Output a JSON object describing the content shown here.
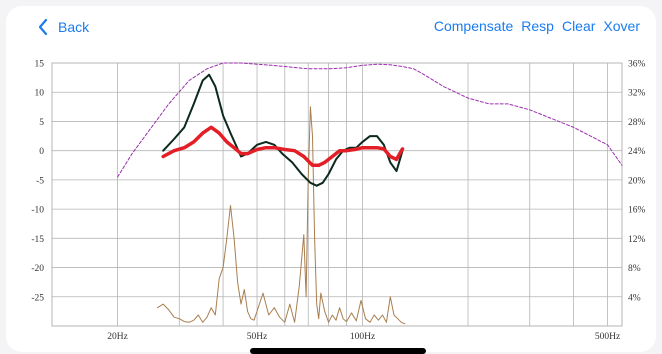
{
  "nav": {
    "back_label": "Back",
    "actions": [
      "Compensate",
      "Resp",
      "Clear",
      "Xover"
    ]
  },
  "colors": {
    "accent": "#1a7cf0",
    "grid": "#b5b5b5",
    "target": "#9b2fae",
    "response": "#0c2a1c",
    "compensated": "#e41e26",
    "spectrum": "#a97e4f"
  },
  "chart_data": {
    "type": "line",
    "x_scale": "log",
    "xlim": [
      13,
      550
    ],
    "ylim": [
      -30,
      15
    ],
    "y2lim": [
      0,
      36
    ],
    "x_ticks": [
      {
        "v": 20,
        "label": "20Hz"
      },
      {
        "v": 50,
        "label": "50Hz"
      },
      {
        "v": 100,
        "label": "100Hz"
      },
      {
        "v": 500,
        "label": "500Hz"
      }
    ],
    "x_grid": [
      20,
      30,
      40,
      50,
      60,
      70,
      80,
      90,
      100,
      200,
      300,
      400,
      500
    ],
    "y_ticks": [
      {
        "v": 15,
        "label": "15"
      },
      {
        "v": 10,
        "label": "10"
      },
      {
        "v": 5,
        "label": "5"
      },
      {
        "v": 0,
        "label": "0"
      },
      {
        "v": -5,
        "label": "-5"
      },
      {
        "v": -10,
        "label": "-10"
      },
      {
        "v": -15,
        "label": "-15"
      },
      {
        "v": -20,
        "label": "-20"
      },
      {
        "v": -25,
        "label": "-25"
      }
    ],
    "y2_ticks": [
      {
        "v": 36,
        "label": "36%"
      },
      {
        "v": 32,
        "label": "32%"
      },
      {
        "v": 28,
        "label": "28%"
      },
      {
        "v": 24,
        "label": "24%"
      },
      {
        "v": 20,
        "label": "20%"
      },
      {
        "v": 16,
        "label": "16%"
      },
      {
        "v": 12,
        "label": "12%"
      },
      {
        "v": 8,
        "label": "8%"
      },
      {
        "v": 4,
        "label": "4%"
      }
    ],
    "series": [
      {
        "key": "target",
        "axis": "left",
        "style": "dashed",
        "x": [
          20,
          22,
          25,
          28,
          32,
          36,
          40,
          45,
          50,
          55,
          60,
          65,
          70,
          75,
          80,
          85,
          90,
          100,
          110,
          120,
          130,
          140,
          150,
          170,
          200,
          230,
          260,
          300,
          400,
          500,
          550
        ],
        "y": [
          -4.5,
          -0.5,
          4,
          8,
          12,
          14,
          15,
          15,
          14.8,
          14.6,
          14.4,
          14.2,
          14.0,
          14.0,
          14.0,
          14.1,
          14.2,
          14.6,
          14.8,
          14.7,
          14.4,
          14.0,
          13.0,
          11.0,
          9.0,
          8.0,
          8.0,
          7.0,
          4.0,
          1.0,
          -2.5
        ]
      },
      {
        "key": "response",
        "axis": "left",
        "style": "solid",
        "x": [
          27,
          29,
          31,
          33,
          35,
          36.5,
          38,
          40,
          42,
          45,
          47,
          50,
          53,
          56,
          59,
          63,
          67,
          71,
          74,
          77,
          80,
          84,
          88,
          92,
          96,
          100,
          105,
          110,
          115,
          120,
          125,
          130
        ],
        "y": [
          0,
          2,
          4,
          8,
          12,
          13,
          11,
          6,
          3,
          -1,
          -0.5,
          1,
          1.5,
          1,
          -0.5,
          -2,
          -4,
          -5.5,
          -6,
          -5.5,
          -4,
          -1.5,
          0,
          0.5,
          0.5,
          1.5,
          2.5,
          2.5,
          1,
          -2,
          -3.5,
          0
        ]
      },
      {
        "key": "compensated",
        "axis": "left",
        "style": "thick",
        "x": [
          27,
          29,
          31,
          33,
          35,
          37,
          39,
          41,
          43,
          45,
          47,
          50,
          53,
          56,
          60,
          64,
          68,
          72,
          75,
          78,
          82,
          86,
          90,
          95,
          100,
          105,
          110,
          115,
          120,
          125,
          130
        ],
        "y": [
          -1,
          0,
          0.5,
          1.5,
          3,
          4,
          3,
          1.5,
          0.5,
          -0.5,
          -0.5,
          0.2,
          0.5,
          0.5,
          0.2,
          0,
          -1,
          -2.5,
          -2.5,
          -2,
          -1,
          0,
          0,
          0.2,
          0.5,
          0.5,
          0.5,
          0.3,
          -1,
          -1.5,
          0.3
        ]
      },
      {
        "key": "spectrum",
        "axis": "right",
        "style": "thin",
        "x": [
          26,
          27,
          28,
          29,
          30,
          31,
          32,
          33,
          34,
          35,
          36,
          37,
          38,
          39,
          40,
          41,
          42,
          43,
          44,
          45,
          46,
          47,
          48,
          49,
          50,
          52,
          54,
          56,
          58,
          60,
          62,
          64,
          66,
          68,
          69,
          70,
          71,
          72,
          73,
          74,
          75,
          76,
          78,
          80,
          82,
          84,
          86,
          88,
          90,
          93,
          96,
          99,
          102,
          105,
          108,
          111,
          114,
          117,
          120,
          123,
          126,
          129,
          132
        ],
        "y": [
          2.5,
          3,
          2.2,
          1.2,
          1.0,
          0.6,
          0.5,
          0.8,
          1.5,
          0.5,
          1.2,
          2.5,
          1.5,
          6.5,
          8.0,
          12.0,
          16.5,
          12.0,
          6.0,
          3.0,
          5.0,
          2.0,
          1.0,
          0.8,
          2.0,
          4.5,
          1.5,
          2.5,
          1.2,
          0.5,
          3.0,
          0.5,
          5.5,
          12.5,
          4.0,
          20.0,
          30.0,
          26.0,
          12.0,
          3.0,
          1.0,
          4.5,
          2.0,
          0.5,
          1.5,
          0.8,
          2.5,
          1.0,
          0.6,
          1.8,
          0.7,
          3.5,
          1.0,
          0.5,
          1.5,
          0.8,
          1.5,
          0.5,
          4.0,
          1.5,
          1.0,
          0.5,
          0.3
        ]
      }
    ]
  }
}
